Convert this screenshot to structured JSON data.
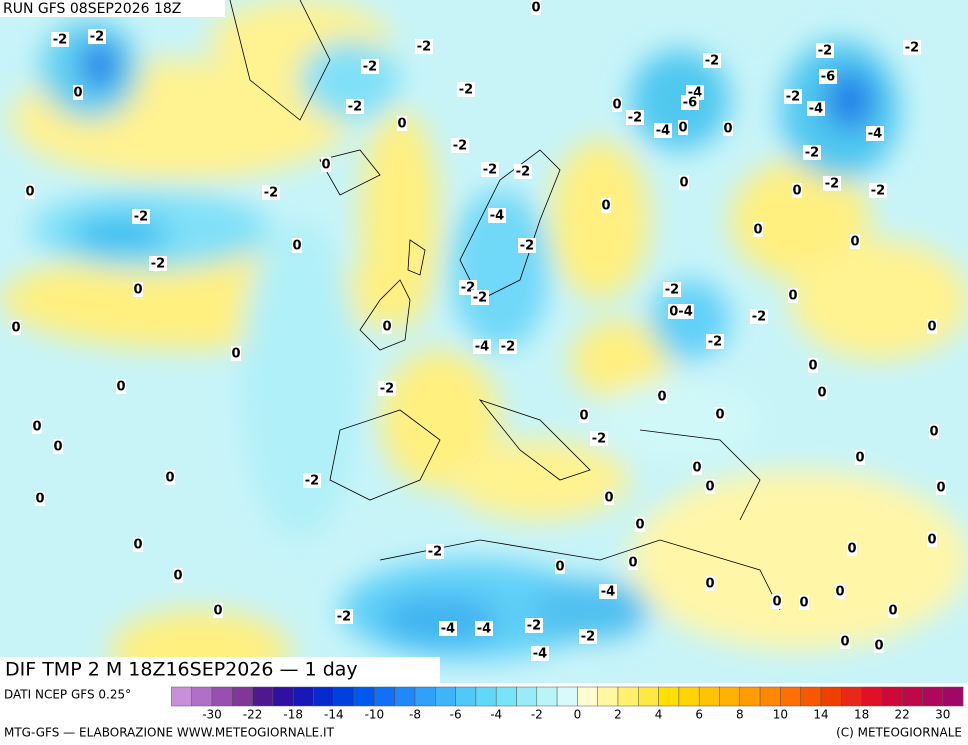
{
  "header": {
    "run": "RUN GFS 08SEP2026 18Z"
  },
  "map": {
    "title": "DIF TMP 2 M 18Z16SEP2026 — 1 day",
    "labels": [
      "-2",
      "-2",
      "0",
      "-2",
      "-2",
      "-2",
      "0",
      "-2",
      "-2",
      "0",
      "0",
      "-2",
      "-2",
      "0",
      "-2",
      "0",
      "0",
      "0",
      "0",
      "-2",
      "0",
      "0",
      "0",
      "0",
      "-2",
      "0",
      "0",
      "0",
      "-2",
      "-2",
      "-4",
      "-4",
      "-2",
      "-4",
      "-2",
      "-4",
      "0",
      "0",
      "-2",
      "-2",
      "-4",
      "-2",
      "0",
      "0",
      "-2",
      "-2",
      "0",
      "-4",
      "-2",
      "-2",
      "0-4",
      "-2",
      "-2",
      "0",
      "0",
      "0",
      "0",
      "-2",
      "-2",
      "-2",
      "-4",
      "-2",
      "-6",
      "-4",
      "-2",
      "-2",
      "-4",
      "-6",
      "-4",
      "-2",
      "0",
      "0",
      "0",
      "-2",
      "0",
      "0",
      "0",
      "0",
      "0",
      "-2",
      "0",
      "0",
      "0",
      "0",
      "0",
      "0",
      "0",
      "0",
      "0",
      "0",
      "0",
      "0",
      "0",
      "0",
      "0",
      "0",
      "0",
      "0"
    ]
  },
  "legend": {
    "source": "DATI NCEP GFS 0.25°",
    "colors": [
      "#c890d8",
      "#b070c8",
      "#9850b0",
      "#803898",
      "#501890",
      "#3010a0",
      "#1818b8",
      "#0828d0",
      "#0040e0",
      "#0058f0",
      "#1070f8",
      "#2088f8",
      "#30a0f8",
      "#40b4f8",
      "#50c8f8",
      "#60d8f8",
      "#78e4f8",
      "#98ecf8",
      "#b8f4f8",
      "#d8fafa",
      "#fffcd0",
      "#fff8a0",
      "#fff070",
      "#ffe840",
      "#ffe000",
      "#ffd400",
      "#ffc400",
      "#ffb000",
      "#ff9c00",
      "#ff8800",
      "#ff7000",
      "#f85800",
      "#f04000",
      "#e82818",
      "#e01028",
      "#d00838",
      "#c00848",
      "#b00858",
      "#a00868"
    ],
    "ticks": [
      -30,
      -22,
      -18,
      -14,
      -10,
      -8,
      -6,
      -4,
      -2,
      0,
      2,
      4,
      6,
      8,
      10,
      14,
      18,
      22,
      30
    ]
  },
  "footer": {
    "left": "MTG-GFS — ELABORAZIONE WWW.METEOGIORNALE.IT",
    "right": "(C) METEOGIORNALE"
  }
}
